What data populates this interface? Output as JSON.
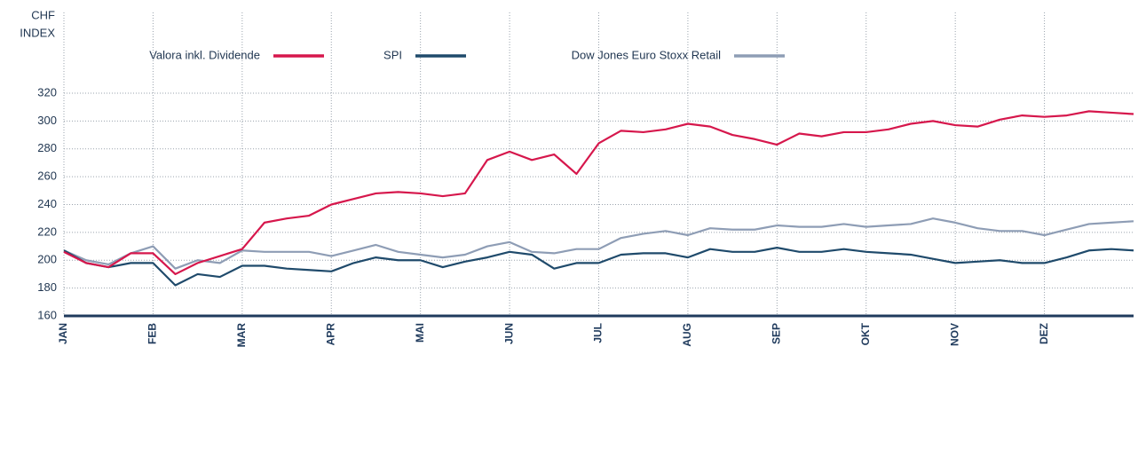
{
  "chart_data": {
    "type": "line",
    "ylabel": [
      "CHF",
      "INDEX"
    ],
    "categories": [
      "JAN",
      null,
      null,
      null,
      "FEB",
      null,
      null,
      null,
      "MAR",
      null,
      null,
      null,
      "APR",
      null,
      null,
      null,
      "MAI",
      null,
      null,
      null,
      "JUN",
      null,
      null,
      null,
      "JUL",
      null,
      null,
      null,
      "AUG",
      null,
      null,
      null,
      "SEP",
      null,
      null,
      null,
      "OKT",
      null,
      null,
      null,
      "NOV",
      null,
      null,
      null,
      "DEZ",
      null,
      null,
      null,
      null
    ],
    "series": [
      {
        "name": "Valora inkl. Dividende",
        "color": "#d6174c",
        "values": [
          206,
          198,
          195,
          205,
          205,
          190,
          198,
          203,
          208,
          227,
          230,
          232,
          240,
          244,
          248,
          249,
          248,
          246,
          248,
          272,
          278,
          272,
          276,
          262,
          284,
          293,
          292,
          294,
          298,
          296,
          290,
          287,
          283,
          291,
          289,
          292,
          292,
          294,
          298,
          300,
          297,
          296,
          301,
          304,
          303,
          304,
          307,
          306,
          305
        ]
      },
      {
        "name": "SPI",
        "color": "#1f4a6b",
        "values": [
          207,
          198,
          195,
          198,
          198,
          182,
          190,
          188,
          196,
          196,
          194,
          193,
          192,
          198,
          202,
          200,
          200,
          195,
          199,
          202,
          206,
          204,
          194,
          198,
          198,
          204,
          205,
          205,
          202,
          208,
          206,
          206,
          209,
          206,
          206,
          208,
          206,
          205,
          204,
          201,
          198,
          199,
          200,
          198,
          198,
          202,
          207,
          208,
          207
        ]
      },
      {
        "name": "Dow Jones Euro Stoxx Retail",
        "color": "#8e9db5",
        "values": [
          207,
          200,
          197,
          205,
          210,
          194,
          200,
          198,
          207,
          206,
          206,
          206,
          203,
          207,
          211,
          206,
          204,
          202,
          204,
          210,
          213,
          206,
          205,
          208,
          208,
          216,
          219,
          221,
          218,
          223,
          222,
          222,
          225,
          224,
          224,
          226,
          224,
          225,
          226,
          230,
          227,
          223,
          221,
          221,
          218,
          222,
          226,
          227,
          228
        ]
      }
    ],
    "ylim": [
      160,
      378
    ],
    "yticks": [
      160,
      180,
      200,
      220,
      240,
      260,
      280,
      300,
      320
    ],
    "grid": true
  }
}
